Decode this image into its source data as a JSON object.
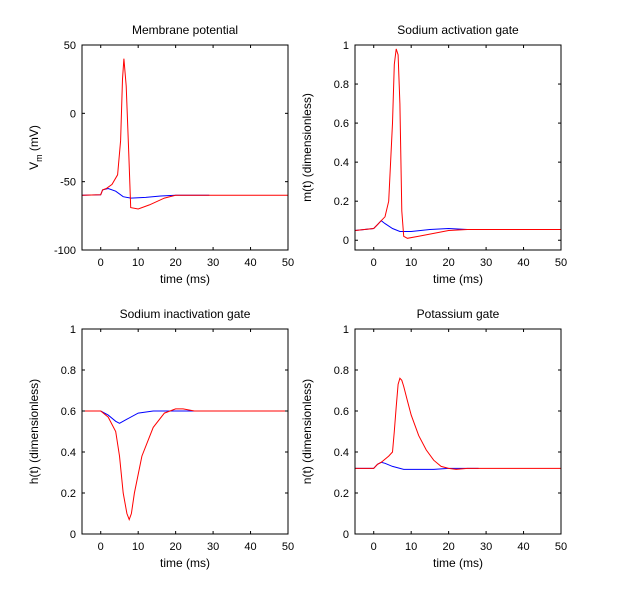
{
  "chart_data": [
    {
      "type": "line",
      "title": "Membrane potential",
      "xlabel": "time (ms)",
      "ylabel": "V",
      "ylabel_sub": "m",
      "ylabel_unit": " (mV)",
      "xlim": [
        -5,
        50
      ],
      "ylim": [
        -100,
        50
      ],
      "xticks": [
        0,
        10,
        20,
        30,
        40,
        50
      ],
      "yticks": [
        -100,
        -50,
        0,
        50
      ],
      "series": [
        {
          "color": "#0000ff",
          "x": [
            -5,
            0,
            0.5,
            2,
            4,
            6,
            8,
            12,
            16,
            20,
            24,
            29
          ],
          "y": [
            -60,
            -59.5,
            -56,
            -55,
            -57,
            -61,
            -62,
            -61.5,
            -60.5,
            -60,
            -60,
            -60
          ]
        },
        {
          "color": "#ff0000",
          "x": [
            -5,
            0,
            0.5,
            1.5,
            3,
            4.5,
            5.3,
            5.8,
            6.2,
            6.8,
            7.5,
            8,
            10,
            13,
            17,
            20,
            25,
            30,
            50
          ],
          "y": [
            -60,
            -59.5,
            -56,
            -55,
            -52,
            -45,
            -20,
            25,
            40,
            20,
            -30,
            -69,
            -70,
            -67,
            -62,
            -60,
            -60,
            -60,
            -60
          ]
        }
      ]
    },
    {
      "type": "line",
      "title": "Sodium activation gate",
      "xlabel": "time (ms)",
      "ylabel": "m(t) (dimensionless)",
      "xlim": [
        -5,
        50
      ],
      "ylim": [
        -0.05,
        1
      ],
      "xticks": [
        0,
        10,
        20,
        30,
        40,
        50
      ],
      "yticks": [
        0,
        0.2,
        0.4,
        0.6,
        0.8,
        1
      ],
      "series": [
        {
          "color": "#0000ff",
          "x": [
            -5,
            0,
            1,
            2,
            3,
            5,
            7,
            10,
            15,
            20,
            25,
            29
          ],
          "y": [
            0.05,
            0.06,
            0.08,
            0.1,
            0.085,
            0.06,
            0.045,
            0.045,
            0.055,
            0.06,
            0.055,
            0.055
          ]
        },
        {
          "color": "#ff0000",
          "x": [
            -5,
            0,
            1,
            2,
            3,
            4,
            5,
            5.5,
            6,
            6.5,
            7,
            7.5,
            8,
            9,
            12,
            16,
            20,
            25,
            30,
            50
          ],
          "y": [
            0.05,
            0.06,
            0.08,
            0.1,
            0.12,
            0.2,
            0.6,
            0.9,
            0.98,
            0.95,
            0.7,
            0.15,
            0.02,
            0.01,
            0.02,
            0.035,
            0.05,
            0.055,
            0.055,
            0.055
          ]
        }
      ]
    },
    {
      "type": "line",
      "title": "Sodium inactivation gate",
      "xlabel": "time (ms)",
      "ylabel": "h(t) (dimensionless)",
      "xlim": [
        -5,
        50
      ],
      "ylim": [
        0,
        1
      ],
      "xticks": [
        0,
        10,
        20,
        30,
        40,
        50
      ],
      "yticks": [
        0,
        0.2,
        0.4,
        0.6,
        0.8,
        1
      ],
      "series": [
        {
          "color": "#0000ff",
          "x": [
            -5,
            0,
            2,
            4,
            5,
            7,
            10,
            14,
            18,
            22,
            26,
            29
          ],
          "y": [
            0.6,
            0.6,
            0.58,
            0.55,
            0.54,
            0.56,
            0.59,
            0.6,
            0.6,
            0.6,
            0.6,
            0.6
          ]
        },
        {
          "color": "#ff0000",
          "x": [
            -5,
            0,
            2,
            4,
            5,
            6,
            7,
            7.6,
            8.2,
            9,
            11,
            14,
            17,
            20,
            22,
            25,
            30,
            50
          ],
          "y": [
            0.6,
            0.6,
            0.57,
            0.5,
            0.38,
            0.2,
            0.1,
            0.07,
            0.1,
            0.2,
            0.38,
            0.52,
            0.59,
            0.61,
            0.61,
            0.6,
            0.6,
            0.6
          ]
        }
      ]
    },
    {
      "type": "line",
      "title": "Potassium gate",
      "xlabel": "time (ms)",
      "ylabel": "n(t) (dimensionless)",
      "xlim": [
        -5,
        50
      ],
      "ylim": [
        0,
        1
      ],
      "xticks": [
        0,
        10,
        20,
        30,
        40,
        50
      ],
      "yticks": [
        0,
        0.2,
        0.4,
        0.6,
        0.8,
        1
      ],
      "series": [
        {
          "color": "#0000ff",
          "x": [
            -5,
            0,
            1,
            2,
            3,
            5,
            8,
            12,
            16,
            20,
            24,
            28
          ],
          "y": [
            0.32,
            0.32,
            0.34,
            0.35,
            0.345,
            0.33,
            0.315,
            0.315,
            0.315,
            0.32,
            0.32,
            0.32
          ]
        },
        {
          "color": "#ff0000",
          "x": [
            -5,
            0,
            1,
            2,
            4,
            5,
            5.5,
            6,
            6.5,
            7,
            7.5,
            8,
            9,
            10,
            12,
            14,
            16,
            18,
            20,
            22,
            25,
            30,
            50
          ],
          "y": [
            0.32,
            0.32,
            0.34,
            0.35,
            0.38,
            0.4,
            0.5,
            0.62,
            0.73,
            0.76,
            0.75,
            0.72,
            0.65,
            0.58,
            0.48,
            0.41,
            0.36,
            0.33,
            0.32,
            0.315,
            0.32,
            0.32,
            0.32
          ]
        }
      ]
    }
  ]
}
